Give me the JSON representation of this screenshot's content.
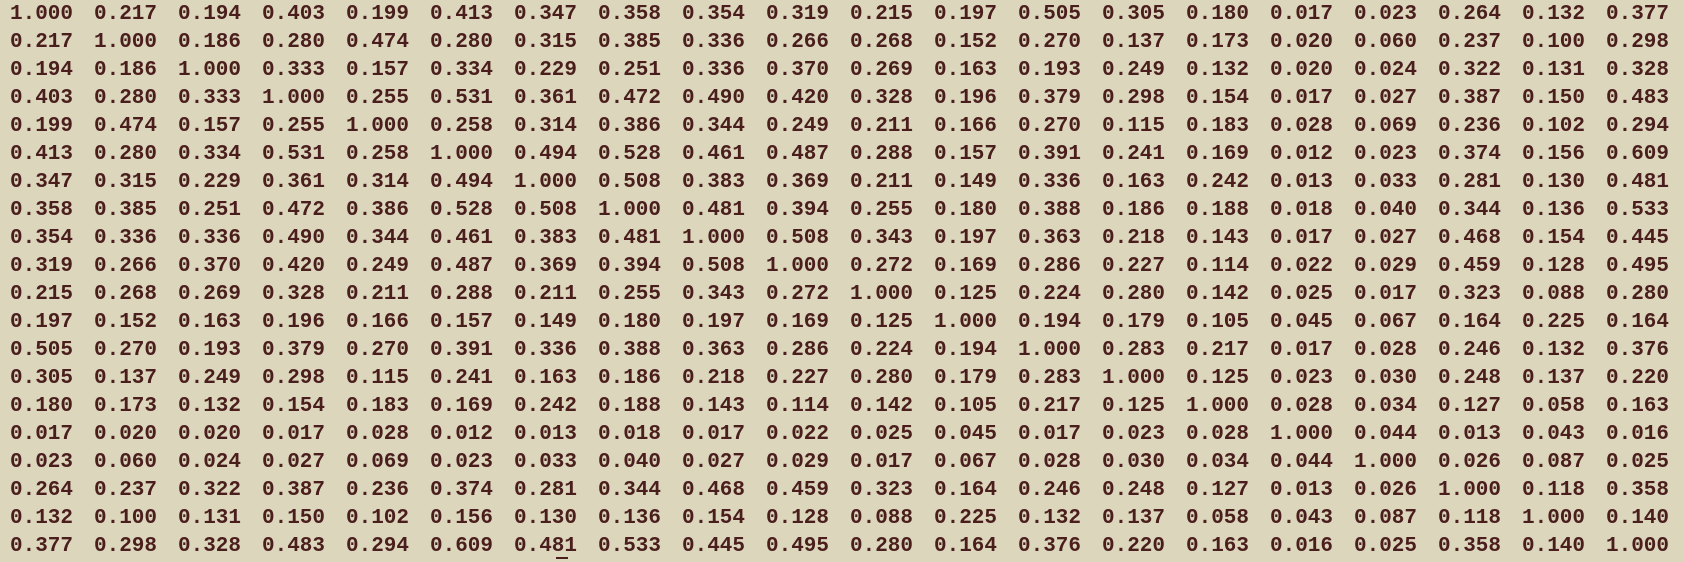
{
  "terminal": {
    "matrix": [
      [
        "1.000",
        "0.217",
        "0.194",
        "0.403",
        "0.199",
        "0.413",
        "0.347",
        "0.358",
        "0.354",
        "0.319",
        "0.215",
        "0.197",
        "0.505",
        "0.305",
        "0.180",
        "0.017",
        "0.023",
        "0.264",
        "0.132",
        "0.377"
      ],
      [
        "0.217",
        "1.000",
        "0.186",
        "0.280",
        "0.474",
        "0.280",
        "0.315",
        "0.385",
        "0.336",
        "0.266",
        "0.268",
        "0.152",
        "0.270",
        "0.137",
        "0.173",
        "0.020",
        "0.060",
        "0.237",
        "0.100",
        "0.298"
      ],
      [
        "0.194",
        "0.186",
        "1.000",
        "0.333",
        "0.157",
        "0.334",
        "0.229",
        "0.251",
        "0.336",
        "0.370",
        "0.269",
        "0.163",
        "0.193",
        "0.249",
        "0.132",
        "0.020",
        "0.024",
        "0.322",
        "0.131",
        "0.328"
      ],
      [
        "0.403",
        "0.280",
        "0.333",
        "1.000",
        "0.255",
        "0.531",
        "0.361",
        "0.472",
        "0.490",
        "0.420",
        "0.328",
        "0.196",
        "0.379",
        "0.298",
        "0.154",
        "0.017",
        "0.027",
        "0.387",
        "0.150",
        "0.483"
      ],
      [
        "0.199",
        "0.474",
        "0.157",
        "0.255",
        "1.000",
        "0.258",
        "0.314",
        "0.386",
        "0.344",
        "0.249",
        "0.211",
        "0.166",
        "0.270",
        "0.115",
        "0.183",
        "0.028",
        "0.069",
        "0.236",
        "0.102",
        "0.294"
      ],
      [
        "0.413",
        "0.280",
        "0.334",
        "0.531",
        "0.258",
        "1.000",
        "0.494",
        "0.528",
        "0.461",
        "0.487",
        "0.288",
        "0.157",
        "0.391",
        "0.241",
        "0.169",
        "0.012",
        "0.023",
        "0.374",
        "0.156",
        "0.609"
      ],
      [
        "0.347",
        "0.315",
        "0.229",
        "0.361",
        "0.314",
        "0.494",
        "1.000",
        "0.508",
        "0.383",
        "0.369",
        "0.211",
        "0.149",
        "0.336",
        "0.163",
        "0.242",
        "0.013",
        "0.033",
        "0.281",
        "0.130",
        "0.481"
      ],
      [
        "0.358",
        "0.385",
        "0.251",
        "0.472",
        "0.386",
        "0.528",
        "0.508",
        "1.000",
        "0.481",
        "0.394",
        "0.255",
        "0.180",
        "0.388",
        "0.186",
        "0.188",
        "0.018",
        "0.040",
        "0.344",
        "0.136",
        "0.533"
      ],
      [
        "0.354",
        "0.336",
        "0.336",
        "0.490",
        "0.344",
        "0.461",
        "0.383",
        "0.481",
        "1.000",
        "0.508",
        "0.343",
        "0.197",
        "0.363",
        "0.218",
        "0.143",
        "0.017",
        "0.027",
        "0.468",
        "0.154",
        "0.445"
      ],
      [
        "0.319",
        "0.266",
        "0.370",
        "0.420",
        "0.249",
        "0.487",
        "0.369",
        "0.394",
        "0.508",
        "1.000",
        "0.272",
        "0.169",
        "0.286",
        "0.227",
        "0.114",
        "0.022",
        "0.029",
        "0.459",
        "0.128",
        "0.495"
      ],
      [
        "0.215",
        "0.268",
        "0.269",
        "0.328",
        "0.211",
        "0.288",
        "0.211",
        "0.255",
        "0.343",
        "0.272",
        "1.000",
        "0.125",
        "0.224",
        "0.280",
        "0.142",
        "0.025",
        "0.017",
        "0.323",
        "0.088",
        "0.280"
      ],
      [
        "0.197",
        "0.152",
        "0.163",
        "0.196",
        "0.166",
        "0.157",
        "0.149",
        "0.180",
        "0.197",
        "0.169",
        "0.125",
        "1.000",
        "0.194",
        "0.179",
        "0.105",
        "0.045",
        "0.067",
        "0.164",
        "0.225",
        "0.164"
      ],
      [
        "0.505",
        "0.270",
        "0.193",
        "0.379",
        "0.270",
        "0.391",
        "0.336",
        "0.388",
        "0.363",
        "0.286",
        "0.224",
        "0.194",
        "1.000",
        "0.283",
        "0.217",
        "0.017",
        "0.028",
        "0.246",
        "0.132",
        "0.376"
      ],
      [
        "0.305",
        "0.137",
        "0.249",
        "0.298",
        "0.115",
        "0.241",
        "0.163",
        "0.186",
        "0.218",
        "0.227",
        "0.280",
        "0.179",
        "0.283",
        "1.000",
        "0.125",
        "0.023",
        "0.030",
        "0.248",
        "0.137",
        "0.220"
      ],
      [
        "0.180",
        "0.173",
        "0.132",
        "0.154",
        "0.183",
        "0.169",
        "0.242",
        "0.188",
        "0.143",
        "0.114",
        "0.142",
        "0.105",
        "0.217",
        "0.125",
        "1.000",
        "0.028",
        "0.034",
        "0.127",
        "0.058",
        "0.163"
      ],
      [
        "0.017",
        "0.020",
        "0.020",
        "0.017",
        "0.028",
        "0.012",
        "0.013",
        "0.018",
        "0.017",
        "0.022",
        "0.025",
        "0.045",
        "0.017",
        "0.023",
        "0.028",
        "1.000",
        "0.044",
        "0.013",
        "0.043",
        "0.016"
      ],
      [
        "0.023",
        "0.060",
        "0.024",
        "0.027",
        "0.069",
        "0.023",
        "0.033",
        "0.040",
        "0.027",
        "0.029",
        "0.017",
        "0.067",
        "0.028",
        "0.030",
        "0.034",
        "0.044",
        "1.000",
        "0.026",
        "0.087",
        "0.025"
      ],
      [
        "0.264",
        "0.237",
        "0.322",
        "0.387",
        "0.236",
        "0.374",
        "0.281",
        "0.344",
        "0.468",
        "0.459",
        "0.323",
        "0.164",
        "0.246",
        "0.248",
        "0.127",
        "0.013",
        "0.026",
        "1.000",
        "0.118",
        "0.358"
      ],
      [
        "0.132",
        "0.100",
        "0.131",
        "0.150",
        "0.102",
        "0.156",
        "0.130",
        "0.136",
        "0.154",
        "0.128",
        "0.088",
        "0.225",
        "0.132",
        "0.137",
        "0.058",
        "0.043",
        "0.087",
        "0.118",
        "1.000",
        "0.140"
      ],
      [
        "0.377",
        "0.298",
        "0.328",
        "0.483",
        "0.294",
        "0.609",
        "0.481",
        "0.533",
        "0.445",
        "0.495",
        "0.280",
        "0.164",
        "0.376",
        "0.220",
        "0.163",
        "0.016",
        "0.025",
        "0.358",
        "0.140",
        "1.000"
      ]
    ]
  },
  "colors": {
    "background": "#dcd6bc",
    "text": "#4a1e1c"
  }
}
